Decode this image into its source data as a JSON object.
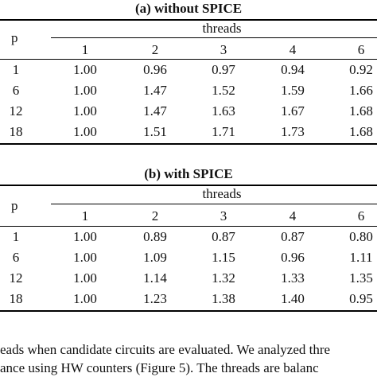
{
  "table_a": {
    "caption": "(a) without SPICE",
    "row_header": "p",
    "group_header": "threads",
    "columns": [
      "1",
      "2",
      "3",
      "4",
      "6"
    ],
    "rows": [
      {
        "p": "1",
        "values": [
          "1.00",
          "0.96",
          "0.97",
          "0.94",
          "0.92"
        ]
      },
      {
        "p": "6",
        "values": [
          "1.00",
          "1.47",
          "1.52",
          "1.59",
          "1.66"
        ]
      },
      {
        "p": "12",
        "values": [
          "1.00",
          "1.47",
          "1.63",
          "1.67",
          "1.68"
        ]
      },
      {
        "p": "18",
        "values": [
          "1.00",
          "1.51",
          "1.71",
          "1.73",
          "1.68"
        ]
      }
    ]
  },
  "table_b": {
    "caption": "(b) with SPICE",
    "row_header": "p",
    "group_header": "threads",
    "columns": [
      "1",
      "2",
      "3",
      "4",
      "6"
    ],
    "rows": [
      {
        "p": "1",
        "values": [
          "1.00",
          "0.89",
          "0.87",
          "0.87",
          "0.80"
        ]
      },
      {
        "p": "6",
        "values": [
          "1.00",
          "1.09",
          "1.15",
          "0.96",
          "1.11"
        ]
      },
      {
        "p": "12",
        "values": [
          "1.00",
          "1.14",
          "1.32",
          "1.33",
          "1.35"
        ]
      },
      {
        "p": "18",
        "values": [
          "1.00",
          "1.23",
          "1.38",
          "1.40",
          "0.95"
        ]
      }
    ]
  },
  "body_text": {
    "line1": "eads when candidate circuits are evaluated. We analyzed thre",
    "line2": "ance using HW counters (Figure 5). The threads are balanc"
  }
}
